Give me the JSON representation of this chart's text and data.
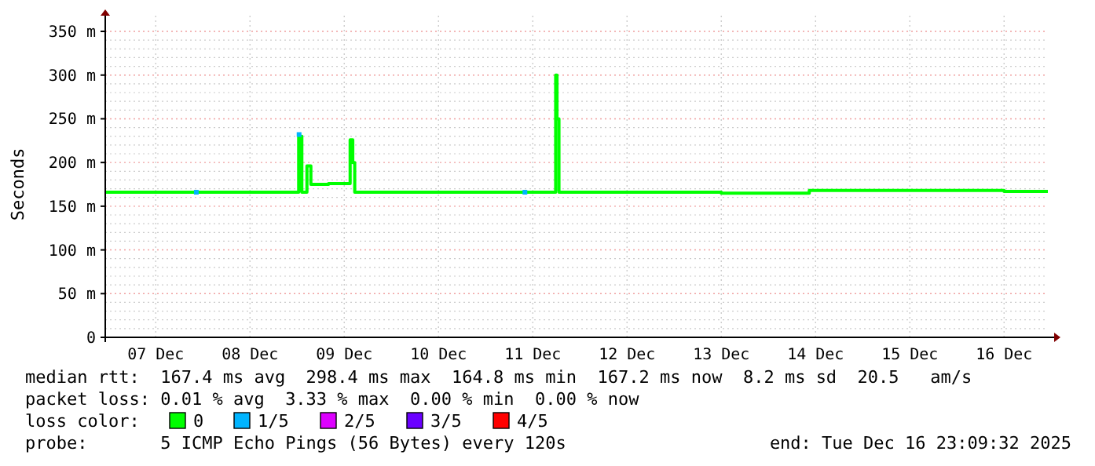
{
  "chart_data": {
    "type": "step",
    "ylabel": "Seconds",
    "legend_title": "loss color:",
    "legend": "bottom",
    "grid": true,
    "xlim": [
      "2025-12-06T23:09",
      "2025-12-16T23:09"
    ],
    "xticks": [
      {
        "value": "2025-12-07T12:00",
        "label": "07 Dec"
      },
      {
        "value": "2025-12-08T12:00",
        "label": "08 Dec"
      },
      {
        "value": "2025-12-09T12:00",
        "label": "09 Dec"
      },
      {
        "value": "2025-12-10T12:00",
        "label": "10 Dec"
      },
      {
        "value": "2025-12-11T12:00",
        "label": "11 Dec"
      },
      {
        "value": "2025-12-12T12:00",
        "label": "12 Dec"
      },
      {
        "value": "2025-12-13T12:00",
        "label": "13 Dec"
      },
      {
        "value": "2025-12-14T12:00",
        "label": "14 Dec"
      },
      {
        "value": "2025-12-15T12:00",
        "label": "15 Dec"
      },
      {
        "value": "2025-12-16T12:00",
        "label": "16 Dec"
      }
    ],
    "ylim": [
      0,
      350
    ],
    "yticks": [
      0,
      {
        "value": 50,
        "label": "50 m"
      },
      {
        "value": 100,
        "label": "100 m"
      },
      {
        "value": 150,
        "label": "150 m"
      },
      {
        "value": 200,
        "label": "200 m"
      },
      {
        "value": 250,
        "label": "250 m"
      },
      {
        "value": 300,
        "label": "300 m"
      },
      {
        "value": 350,
        "label": "350 m"
      }
    ],
    "series": [
      {
        "name": "0",
        "color": "#00ff00",
        "x": [
          "2025-12-06T23:09",
          "2025-12-07T12:00",
          "2025-12-08T00:00",
          "2025-12-08T12:00",
          "2025-12-09T00:24",
          "2025-12-09T01:12",
          "2025-12-09T02:30",
          "2025-12-09T03:30",
          "2025-12-09T08:00",
          "2025-12-09T13:30",
          "2025-12-09T14:10",
          "2025-12-09T14:40",
          "2025-12-10T12:00",
          "2025-12-11T12:00",
          "2025-12-11T17:50",
          "2025-12-11T18:10",
          "2025-12-11T18:40",
          "2025-12-12T12:00",
          "2025-12-13T12:00",
          "2025-12-14T10:24",
          "2025-12-15T12:00",
          "2025-12-16T12:00",
          "2025-12-16T23:09"
        ],
        "values": [
          166,
          166,
          166,
          166,
          230,
          166,
          196,
          175,
          176,
          226,
          200,
          166,
          166,
          166,
          300,
          250,
          166,
          166,
          165,
          168,
          168,
          167,
          167
        ]
      },
      {
        "name": "1/5",
        "color": "#00b4ff",
        "type": "scatter",
        "marker": "square",
        "x": [
          "2025-12-07T22:20",
          "2025-12-09T00:30",
          "2025-12-11T10:00"
        ],
        "values": [
          166,
          232,
          166
        ]
      },
      {
        "name": "2/5",
        "color": "#dd00ff",
        "type": "scatter"
      },
      {
        "name": "3/5",
        "color": "#6a00ff",
        "type": "scatter"
      },
      {
        "name": "4/5",
        "color": "#ff0000",
        "type": "scatter"
      }
    ],
    "annotations": [
      "median rtt:  167.4 ms avg  298.4 ms max  164.8 ms min  167.2 ms now  8.2 ms sd  20.5   am/s",
      "packet loss: 0.01 % avg  3.33 % max  0.00 % min  0.00 % now",
      "probe:       5 ICMP Echo Pings (56 Bytes) every 120s",
      "end: Tue Dec 16 23:09:32 2025"
    ]
  }
}
